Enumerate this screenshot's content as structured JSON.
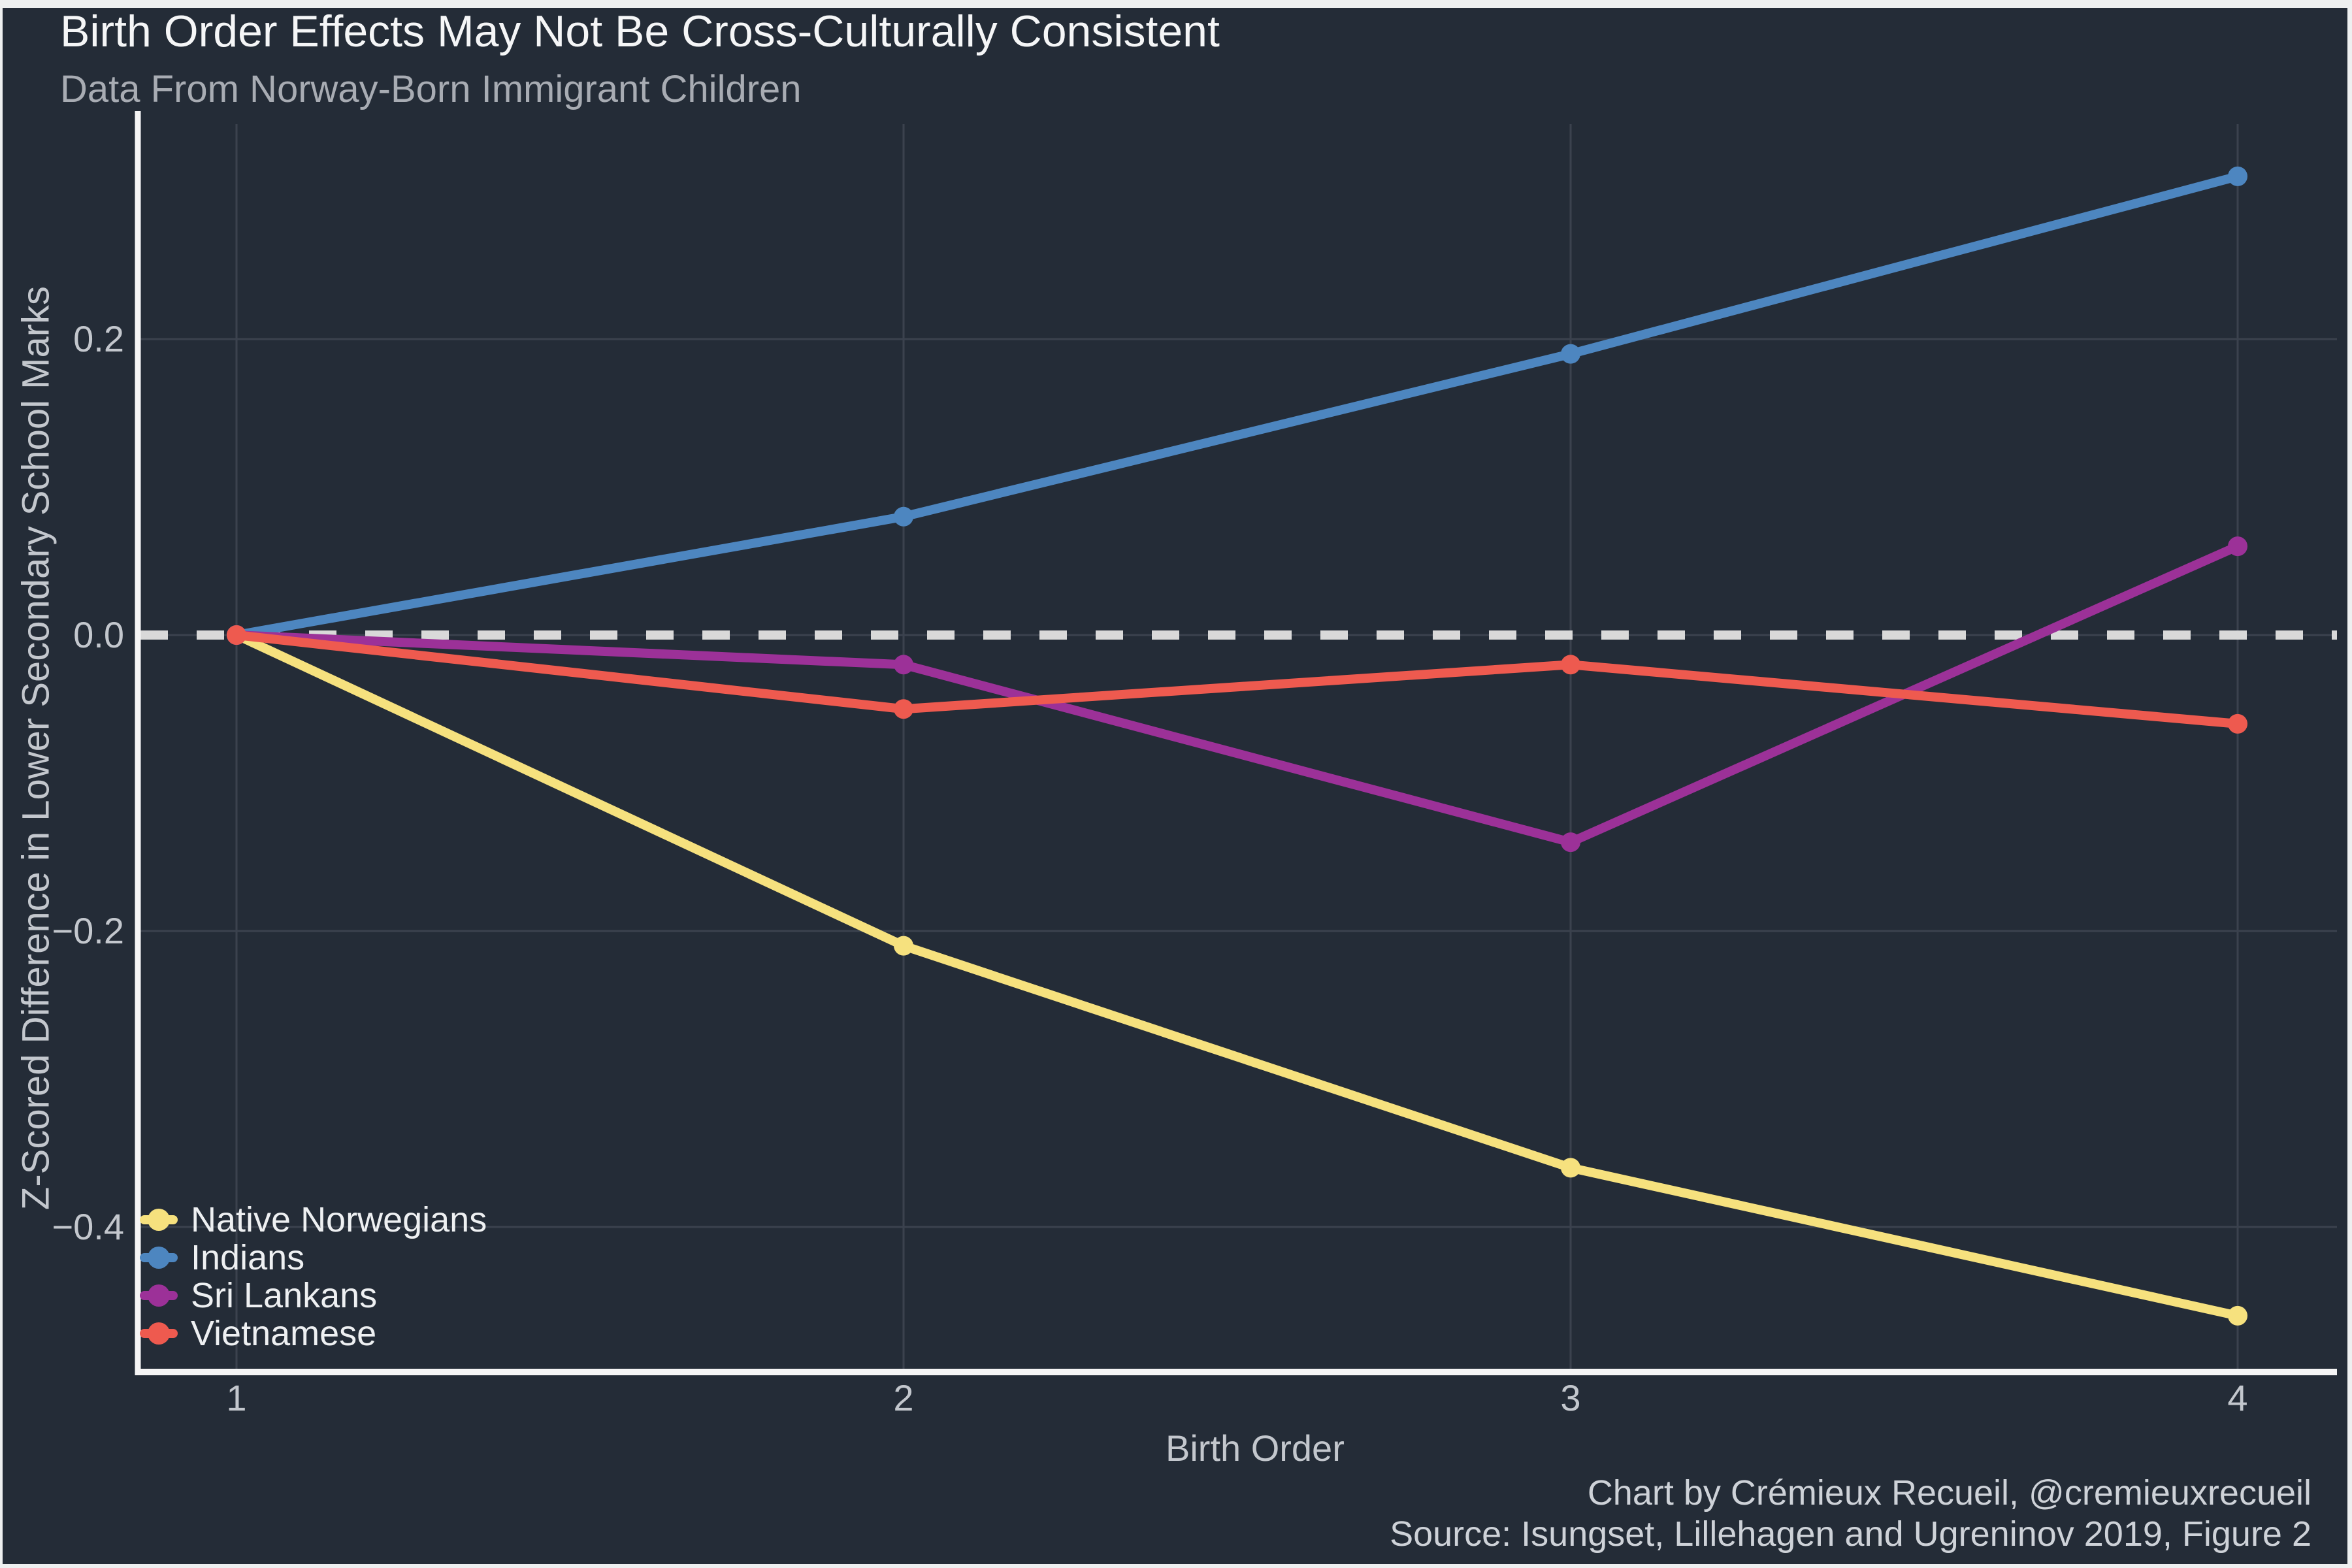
{
  "header": {
    "title": "Birth Order Effects May Not Be Cross-Culturally Consistent",
    "subtitle": "Data From Norway-Born Immigrant Children"
  },
  "footer": {
    "credit": "Chart by Crémieux Recueil, @cremieuxrecueil",
    "source": "Source: Isungset, Lillehagen and Ugreninov 2019, Figure 2"
  },
  "chart_data": {
    "type": "line",
    "title": "Birth Order Effects May Not Be Cross-Culturally Consistent",
    "subtitle": "Data From Norway-Born Immigrant Children",
    "xlabel": "Birth Order",
    "ylabel": "Z-Scored Difference in Lower Secondary School Marks",
    "x": [
      1,
      2,
      3,
      4
    ],
    "x_tick_labels": [
      "1",
      "2",
      "3",
      "4"
    ],
    "y_ticks": [
      0.2,
      0.0,
      -0.2,
      -0.4
    ],
    "y_tick_labels": [
      "0.2",
      "0.0",
      "−0.2",
      "−0.4"
    ],
    "ylim": [
      -0.5,
      0.35
    ],
    "grid": true,
    "legend_position": "bottom-left",
    "reference_line": {
      "y": 0.0,
      "style": "dashed",
      "color": "#d9d9d9"
    },
    "series": [
      {
        "name": "Native Norwegians",
        "color": "#f6e17e",
        "values": [
          0.0,
          -0.21,
          -0.36,
          -0.46
        ]
      },
      {
        "name": "Indians",
        "color": "#4d86c0",
        "values": [
          0.0,
          0.08,
          0.19,
          0.31
        ]
      },
      {
        "name": "Sri Lankans",
        "color": "#9c3198",
        "values": [
          0.0,
          -0.02,
          -0.14,
          0.06
        ]
      },
      {
        "name": "Vietnamese",
        "color": "#ee5a4f",
        "values": [
          0.0,
          -0.05,
          -0.02,
          -0.06
        ]
      }
    ]
  },
  "colors": {
    "background": "#242c37",
    "frame": "#eef0f0",
    "grid": "#3b424e",
    "axis": "#f5f5f5",
    "zero_dash": "#d9d9d9",
    "tick_text": "#c3c7cd",
    "title_text": "#f5f6f7",
    "subtitle_text": "#a8acb3",
    "legend_text": "#eef0f2",
    "footer_text": "#ced2d8"
  }
}
